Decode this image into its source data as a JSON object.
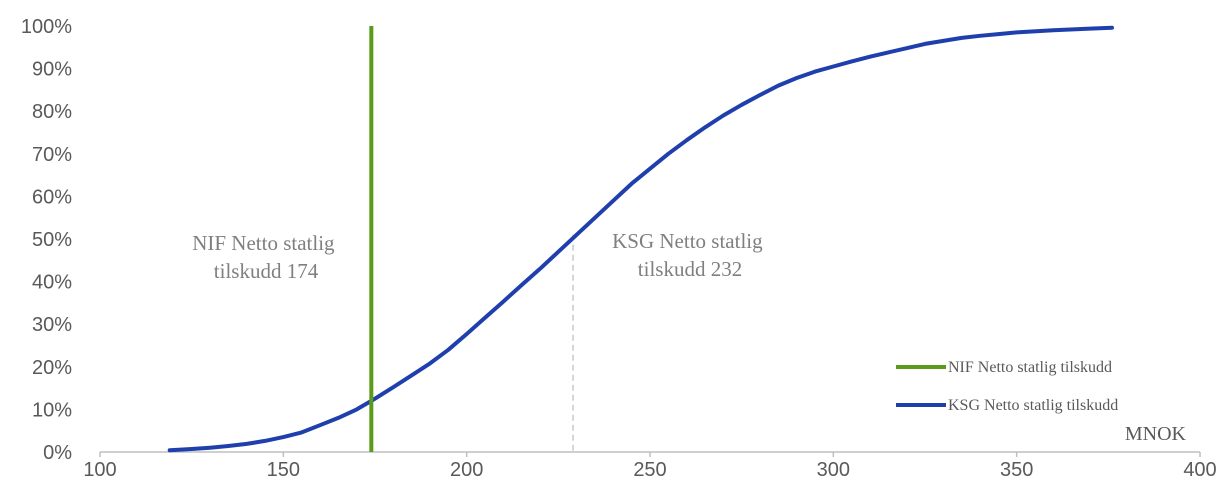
{
  "chart_data": {
    "type": "line",
    "xlabel": "MNOK",
    "ylabel": "",
    "xlim": [
      100,
      400
    ],
    "ylim": [
      0,
      1
    ],
    "xticks": [
      "100",
      "150",
      "200",
      "250",
      "300",
      "350",
      "400"
    ],
    "yticks": [
      "0%",
      "10%",
      "20%",
      "30%",
      "40%",
      "50%",
      "60%",
      "70%",
      "80%",
      "90%",
      "100%"
    ],
    "grid": false,
    "legend_position": "bottom-right",
    "colors": {
      "nif": "#5b9a1a",
      "ksg": "#1f3fad",
      "ref": "#bfbfbf",
      "axis": "#bfbfbf"
    },
    "series": [
      {
        "name": "NIF Netto statlig tilskudd",
        "kind": "vertical-line",
        "x": 174
      },
      {
        "name": "KSG Netto statlig tilskudd",
        "kind": "cdf",
        "x": [
          119,
          125,
          130,
          135,
          140,
          145,
          150,
          155,
          160,
          165,
          170,
          174,
          180,
          185,
          190,
          195,
          200,
          205,
          210,
          215,
          220,
          225,
          230,
          235,
          240,
          245,
          250,
          255,
          260,
          265,
          270,
          275,
          280,
          285,
          290,
          295,
          300,
          305,
          310,
          315,
          320,
          325,
          330,
          335,
          340,
          345,
          350,
          360,
          370,
          376
        ],
        "y": [
          0.004,
          0.007,
          0.01,
          0.014,
          0.019,
          0.026,
          0.035,
          0.046,
          0.063,
          0.08,
          0.1,
          0.12,
          0.152,
          0.18,
          0.208,
          0.24,
          0.277,
          0.315,
          0.353,
          0.392,
          0.43,
          0.47,
          0.51,
          0.55,
          0.59,
          0.63,
          0.665,
          0.7,
          0.732,
          0.762,
          0.79,
          0.815,
          0.838,
          0.86,
          0.878,
          0.893,
          0.905,
          0.917,
          0.928,
          0.938,
          0.948,
          0.958,
          0.965,
          0.972,
          0.977,
          0.981,
          0.985,
          0.99,
          0.994,
          0.996
        ]
      }
    ],
    "reference_lines": [
      {
        "x": 229,
        "y_top": 0.51,
        "style": "dashed"
      }
    ],
    "annotations": [
      {
        "lines": [
          "NIF Netto statlig",
          "tilskudd 174"
        ]
      },
      {
        "lines": [
          "KSG Netto statlig",
          "tilskudd 232"
        ]
      }
    ]
  }
}
